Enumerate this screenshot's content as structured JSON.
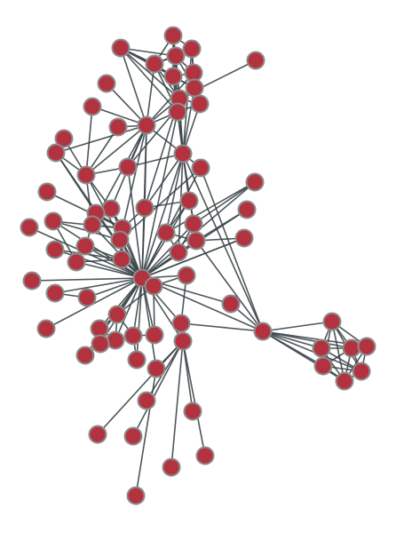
{
  "colors": {
    "node_fill": "#b2333f",
    "node_stroke": "#8c8c8c",
    "edge": "#3b4548",
    "background": "#ffffff"
  },
  "graph": {
    "node_count": 95,
    "labels_shown": false
  }
}
